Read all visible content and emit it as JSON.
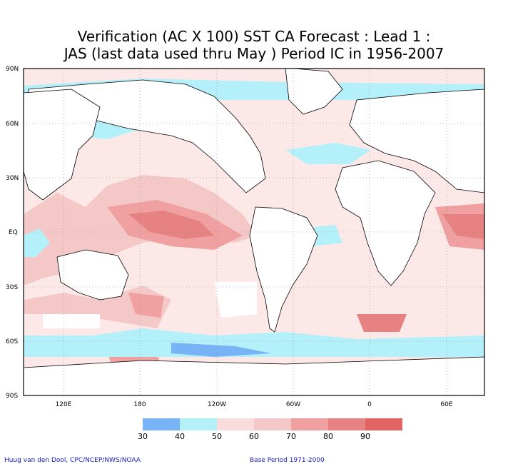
{
  "title": {
    "line1": "Verification (AC X 100) SST CA Forecast : Lead 1 :",
    "line2": "JAS (last data used thru May ) Period IC in 1956-2007"
  },
  "lat_labels": [
    "90N",
    "60N",
    "30N",
    "EQ",
    "30S",
    "60S",
    "90S"
  ],
  "lon_labels": [
    "120E",
    "180",
    "120W",
    "60W",
    "0",
    "60E"
  ],
  "legend": {
    "labels": [
      "30",
      "40",
      "50",
      "60",
      "70",
      "80",
      "90"
    ],
    "colors": [
      "#78b4f5",
      "#b4f0fa",
      "#fadcdc",
      "#f5c8c8",
      "#f0a0a0",
      "#e68282",
      "#e06464"
    ]
  },
  "footer": {
    "credit": "Huug van den Dool, CPC/NCEP/NWS/NOAA",
    "base_period": "Base Period 1971-2000"
  }
}
